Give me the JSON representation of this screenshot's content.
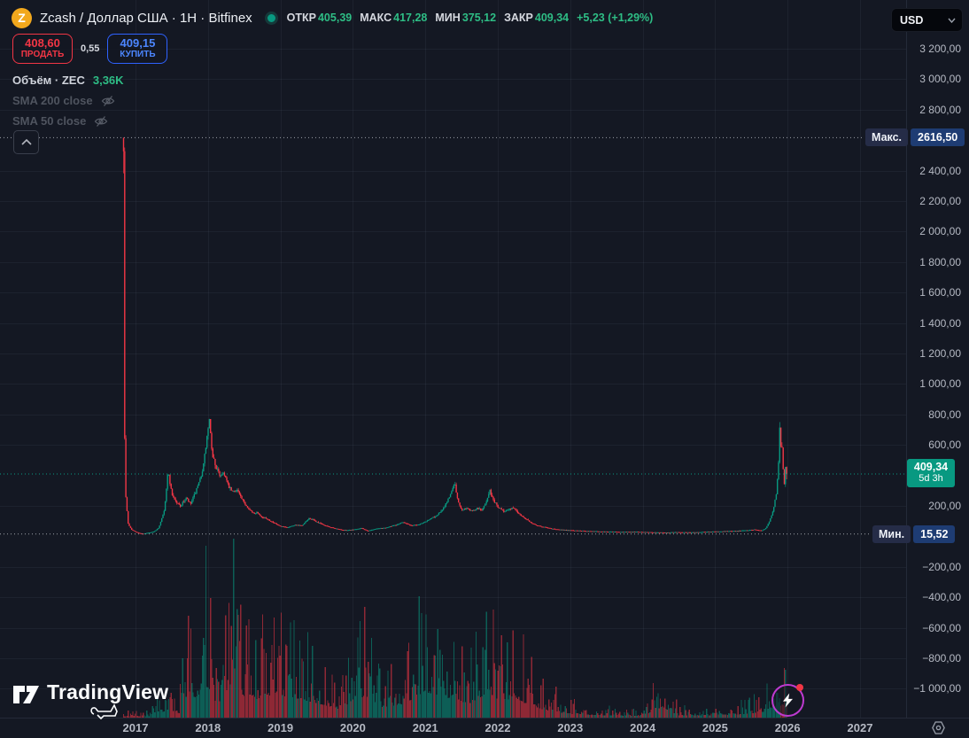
{
  "header": {
    "coin_glyph": "Z",
    "symbol_title": "Zcash / Доллар США · 1H · Bitfinex",
    "ohlc": {
      "open_label": "ОТКР",
      "open": "405,39",
      "high_label": "МАКС",
      "high": "417,28",
      "low_label": "МИН",
      "low": "375,12",
      "close_label": "ЗАКР",
      "close": "409,34",
      "change": "+5,23 (+1,29%)"
    }
  },
  "trade": {
    "sell_price": "408,60",
    "sell_label": "ПРОДАТЬ",
    "spread": "0,55",
    "buy_price": "409,15",
    "buy_label": "КУПИТЬ"
  },
  "legend": {
    "volume_label": "Объём · ZEC",
    "volume_value": "3,36K",
    "sma200": "SMA 200 close",
    "sma50": "SMA 50 close"
  },
  "price_scale": {
    "currency": "USD",
    "ticks": [
      {
        "label": "3 200,00",
        "value": 3200
      },
      {
        "label": "3 000,00",
        "value": 3000
      },
      {
        "label": "2 800,00",
        "value": 2800
      },
      {
        "label": "2 400,00",
        "value": 2400
      },
      {
        "label": "2 200,00",
        "value": 2200
      },
      {
        "label": "2 000,00",
        "value": 2000
      },
      {
        "label": "1 800,00",
        "value": 1800
      },
      {
        "label": "1 600,00",
        "value": 1600
      },
      {
        "label": "1 400,00",
        "value": 1400
      },
      {
        "label": "1 200,00",
        "value": 1200
      },
      {
        "label": "1 000,00",
        "value": 1000
      },
      {
        "label": "800,00",
        "value": 800
      },
      {
        "label": "600,00",
        "value": 600
      },
      {
        "label": "200,00",
        "value": 200
      },
      {
        "label": "−200,00",
        "value": -200
      },
      {
        "label": "−400,00",
        "value": -400
      },
      {
        "label": "−600,00",
        "value": -600
      },
      {
        "label": "−800,00",
        "value": -800
      },
      {
        "label": "−1 000,00",
        "value": -1000
      }
    ],
    "max_tag": {
      "label": "Макс.",
      "value_text": "2616,50",
      "value": 2616.5
    },
    "min_tag": {
      "label": "Мин.",
      "value_text": "15,52",
      "value": 15.52
    },
    "last_tag": {
      "price_text": "409,34",
      "countdown": "5d 3h",
      "value": 409.34
    }
  },
  "time_scale": {
    "years": [
      "2017",
      "2018",
      "2019",
      "2020",
      "2021",
      "2022",
      "2023",
      "2024",
      "2025",
      "2026",
      "2027"
    ]
  },
  "branding": {
    "name": "TradingView"
  },
  "colors": {
    "background": "#141823",
    "up": "#089981",
    "down": "#f23645",
    "sell_red": "#f23645",
    "buy_blue": "#2e62ff",
    "axis_text": "#b6bac4",
    "tag_blue": "#1e3c73",
    "last_badge_green": "#089981",
    "events_ring_purple": "#bd3ad0"
  },
  "chart_data": {
    "type": "candlestick",
    "symbol": "ZEC/USD",
    "interval": "1H",
    "exchange": "Bitfinex",
    "scale": "linear",
    "y_axis_range": [
      -1100,
      3300
    ],
    "x_range_years": [
      2016.83,
      2027.6
    ],
    "grid": true,
    "all_time_high": 2616.5,
    "all_time_low": 15.52,
    "last_price": 409.34,
    "bar_step_years": 0.016,
    "price_keyframes": [
      [
        2016.835,
        2616.5
      ],
      [
        2016.845,
        950
      ],
      [
        2016.853,
        540
      ],
      [
        2016.868,
        235
      ],
      [
        2016.9,
        80
      ],
      [
        2016.95,
        42
      ],
      [
        2017.0,
        30
      ],
      [
        2017.05,
        22
      ],
      [
        2017.1,
        16
      ],
      [
        2017.18,
        24
      ],
      [
        2017.25,
        30
      ],
      [
        2017.32,
        55
      ],
      [
        2017.4,
        180
      ],
      [
        2017.45,
        430
      ],
      [
        2017.5,
        280
      ],
      [
        2017.56,
        225
      ],
      [
        2017.62,
        200
      ],
      [
        2017.7,
        250
      ],
      [
        2017.76,
        210
      ],
      [
        2017.82,
        280
      ],
      [
        2017.88,
        350
      ],
      [
        2017.94,
        470
      ],
      [
        2018.0,
        700
      ],
      [
        2018.02,
        760
      ],
      [
        2018.05,
        560
      ],
      [
        2018.1,
        470
      ],
      [
        2018.16,
        400
      ],
      [
        2018.22,
        420
      ],
      [
        2018.28,
        330
      ],
      [
        2018.34,
        290
      ],
      [
        2018.4,
        310
      ],
      [
        2018.47,
        240
      ],
      [
        2018.55,
        190
      ],
      [
        2018.62,
        150
      ],
      [
        2018.68,
        160
      ],
      [
        2018.75,
        125
      ],
      [
        2018.82,
        115
      ],
      [
        2018.9,
        90
      ],
      [
        2019.0,
        65
      ],
      [
        2019.1,
        60
      ],
      [
        2019.2,
        75
      ],
      [
        2019.3,
        70
      ],
      [
        2019.4,
        120
      ],
      [
        2019.5,
        95
      ],
      [
        2019.62,
        70
      ],
      [
        2019.75,
        52
      ],
      [
        2019.88,
        40
      ],
      [
        2020.0,
        44
      ],
      [
        2020.12,
        55
      ],
      [
        2020.2,
        36
      ],
      [
        2020.32,
        50
      ],
      [
        2020.45,
        57
      ],
      [
        2020.6,
        75
      ],
      [
        2020.7,
        95
      ],
      [
        2020.8,
        70
      ],
      [
        2020.92,
        80
      ],
      [
        2021.05,
        110
      ],
      [
        2021.15,
        135
      ],
      [
        2021.25,
        180
      ],
      [
        2021.36,
        290
      ],
      [
        2021.4,
        360
      ],
      [
        2021.45,
        230
      ],
      [
        2021.5,
        175
      ],
      [
        2021.58,
        185
      ],
      [
        2021.65,
        165
      ],
      [
        2021.72,
        185
      ],
      [
        2021.78,
        170
      ],
      [
        2021.85,
        240
      ],
      [
        2021.89,
        300
      ],
      [
        2021.94,
        235
      ],
      [
        2022.0,
        195
      ],
      [
        2022.08,
        165
      ],
      [
        2022.15,
        180
      ],
      [
        2022.22,
        185
      ],
      [
        2022.3,
        145
      ],
      [
        2022.38,
        118
      ],
      [
        2022.46,
        90
      ],
      [
        2022.55,
        70
      ],
      [
        2022.65,
        60
      ],
      [
        2022.75,
        50
      ],
      [
        2022.85,
        45
      ],
      [
        2022.95,
        41
      ],
      [
        2023.1,
        38
      ],
      [
        2023.3,
        34
      ],
      [
        2023.5,
        31
      ],
      [
        2023.7,
        29
      ],
      [
        2023.9,
        30
      ],
      [
        2024.1,
        27
      ],
      [
        2024.3,
        25
      ],
      [
        2024.5,
        28
      ],
      [
        2024.7,
        26
      ],
      [
        2024.9,
        30
      ],
      [
        2025.1,
        33
      ],
      [
        2025.3,
        36
      ],
      [
        2025.45,
        40
      ],
      [
        2025.55,
        45
      ],
      [
        2025.65,
        38
      ],
      [
        2025.7,
        55
      ],
      [
        2025.76,
        110
      ],
      [
        2025.81,
        190
      ],
      [
        2025.85,
        300
      ],
      [
        2025.875,
        480
      ],
      [
        2025.895,
        750
      ],
      [
        2025.91,
        560
      ],
      [
        2025.925,
        610
      ],
      [
        2025.94,
        420
      ],
      [
        2025.955,
        340
      ],
      [
        2025.97,
        450
      ],
      [
        2025.985,
        370
      ],
      [
        2026.0,
        409.34
      ]
    ],
    "volume_keyframes": [
      [
        2016.835,
        3
      ],
      [
        2017.2,
        3
      ],
      [
        2017.42,
        15
      ],
      [
        2017.6,
        8
      ],
      [
        2017.73,
        55
      ],
      [
        2017.9,
        40
      ],
      [
        2017.95,
        75
      ],
      [
        2018.0,
        68
      ],
      [
        2018.1,
        35
      ],
      [
        2018.2,
        30
      ],
      [
        2018.37,
        100
      ],
      [
        2018.5,
        45
      ],
      [
        2018.62,
        40
      ],
      [
        2018.88,
        52
      ],
      [
        2019.2,
        45
      ],
      [
        2019.5,
        33
      ],
      [
        2019.8,
        20
      ],
      [
        2020.1,
        40
      ],
      [
        2020.16,
        52
      ],
      [
        2020.4,
        24
      ],
      [
        2020.7,
        30
      ],
      [
        2021.0,
        60
      ],
      [
        2021.2,
        42
      ],
      [
        2021.36,
        46
      ],
      [
        2021.6,
        30
      ],
      [
        2021.88,
        58
      ],
      [
        2022.0,
        40
      ],
      [
        2022.28,
        42
      ],
      [
        2022.45,
        26
      ],
      [
        2022.7,
        15
      ],
      [
        2023.0,
        8
      ],
      [
        2023.5,
        5
      ],
      [
        2024.0,
        4
      ],
      [
        2024.26,
        24
      ],
      [
        2024.5,
        5
      ],
      [
        2025.0,
        5
      ],
      [
        2025.4,
        8
      ],
      [
        2025.7,
        14
      ],
      [
        2025.85,
        30
      ],
      [
        2025.95,
        24
      ],
      [
        2026.0,
        20
      ]
    ]
  }
}
